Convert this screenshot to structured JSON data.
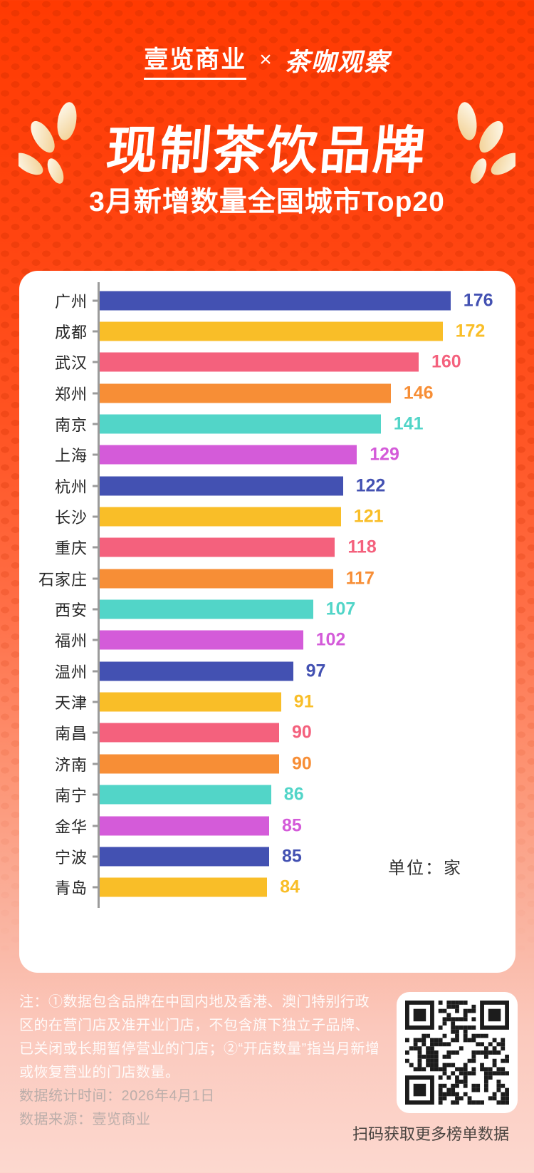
{
  "logo": {
    "left_brand": "壹览商业",
    "separator": "×",
    "right_brand": "茶咖观察"
  },
  "header": {
    "title": "现制茶饮品牌",
    "subtitle": "3月新增数量全国城市Top20"
  },
  "chart_data": {
    "type": "bar",
    "orientation": "horizontal",
    "title": "现制茶饮品牌3月新增数量全国城市Top20",
    "categories": [
      "广州",
      "成都",
      "武汉",
      "郑州",
      "南京",
      "上海",
      "杭州",
      "长沙",
      "重庆",
      "石家庄",
      "西安",
      "福州",
      "温州",
      "天津",
      "南昌",
      "济南",
      "南宁",
      "金华",
      "宁波",
      "青岛"
    ],
    "values": [
      176,
      172,
      160,
      146,
      141,
      129,
      122,
      121,
      118,
      117,
      107,
      102,
      97,
      91,
      90,
      90,
      86,
      85,
      85,
      84
    ],
    "unit_label": "单位：家",
    "xlim": [
      0,
      200
    ],
    "grid": false,
    "value_labels": "end-of-bar, colored same as bar",
    "palette": [
      "#4351b2",
      "#f9be28",
      "#f4617d",
      "#f78e36",
      "#52d5c8",
      "#d45bd9"
    ],
    "axis_color": "#9b9b9b"
  },
  "footer": {
    "note": "注：①数据包含品牌在中国内地及香港、澳门特别行政区的在营门店及准开业门店，不包含旗下独立子品牌、已关闭或长期暂停营业的门店；②“开店数量”指当月新增或恢复营业的门店数量。",
    "stat_time": "数据统计时间：2026年4月1日",
    "source": "数据来源：壹览商业",
    "scan_hint": "扫码获取更多榜单数据"
  },
  "colors": {
    "background_top": "#ff3a02",
    "background_bottom": "#fcd8cf",
    "card": "#ffffff",
    "title_text": "#ffffff",
    "city_label": "#262626",
    "footer_note": "#f3ece8",
    "footer_stats": "#bcaeaa",
    "scan_hint_text": "#4a4440"
  }
}
